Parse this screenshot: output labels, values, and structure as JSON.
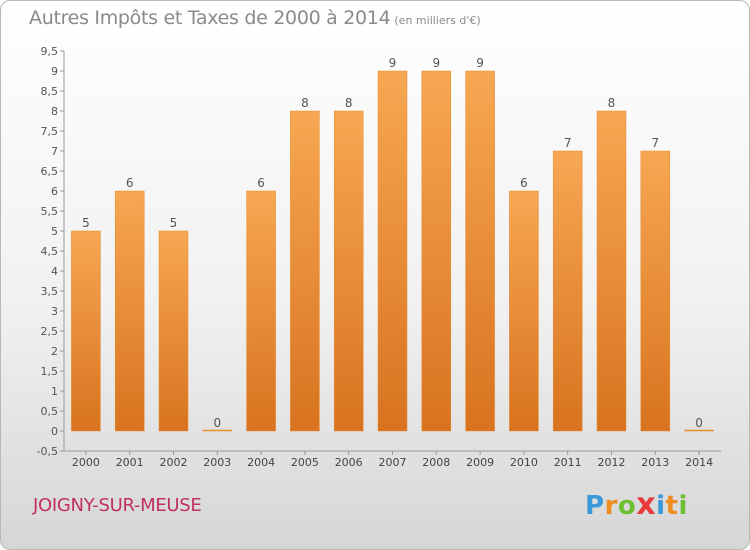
{
  "chart_data": {
    "type": "bar",
    "title": "Autres Impôts et Taxes de 2000 à 2014",
    "subtitle": "(en milliers d'€)",
    "categories": [
      "2000",
      "2001",
      "2002",
      "2003",
      "2004",
      "2005",
      "2006",
      "2007",
      "2008",
      "2009",
      "2010",
      "2011",
      "2012",
      "2013",
      "2014"
    ],
    "values": [
      5,
      6,
      5,
      0,
      6,
      8,
      8,
      9,
      9,
      9,
      6,
      7,
      8,
      7,
      0
    ],
    "ylim": [
      -0.5,
      9.5
    ],
    "yticks": [
      "-0,5",
      "0",
      "0,5",
      "1",
      "1,5",
      "2",
      "2,5",
      "3",
      "3,5",
      "4",
      "4,5",
      "5",
      "5,5",
      "6",
      "6,5",
      "7",
      "7,5",
      "8",
      "8,5",
      "9",
      "9,5"
    ],
    "grid": false,
    "bar_color": "#f0903a"
  },
  "footer": {
    "city": "JOIGNY-SUR-MEUSE",
    "logo": [
      "P",
      "r",
      "o",
      "x",
      "i",
      "t",
      "i"
    ],
    "logo_colors": [
      "#3a9ad9",
      "#f08c1e",
      "#6cbf2f",
      "#e83a3a",
      "#3a9ad9",
      "#f08c1e",
      "#6cbf2f"
    ]
  }
}
